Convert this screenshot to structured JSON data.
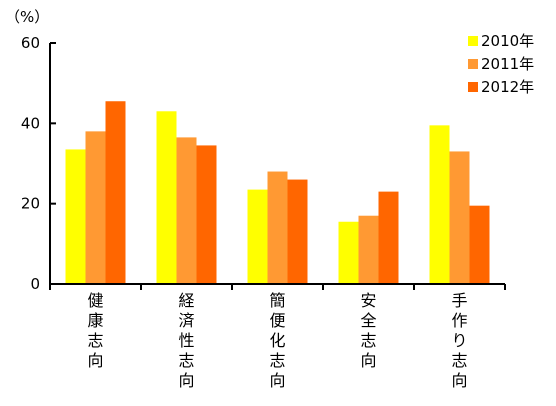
{
  "chart_data": {
    "type": "bar",
    "unit_label": "（%）",
    "categories": [
      "健康志向",
      "経済性志向",
      "簡便化志向",
      "安全志向",
      "手作り志向"
    ],
    "series": [
      {
        "name": "2010年",
        "color": "#FFFF00",
        "values": [
          33.5,
          43.0,
          23.5,
          15.5,
          39.5
        ]
      },
      {
        "name": "2011年",
        "color": "#FF9933",
        "values": [
          38.0,
          36.5,
          28.0,
          17.0,
          33.0
        ]
      },
      {
        "name": "2012年",
        "color": "#FF6600",
        "values": [
          45.5,
          34.5,
          26.0,
          23.0,
          19.5
        ]
      }
    ],
    "y_ticks": [
      "0",
      "20",
      "40",
      "60"
    ],
    "ylim": [
      0,
      60
    ],
    "legend_position": "top-right",
    "grid": false
  }
}
